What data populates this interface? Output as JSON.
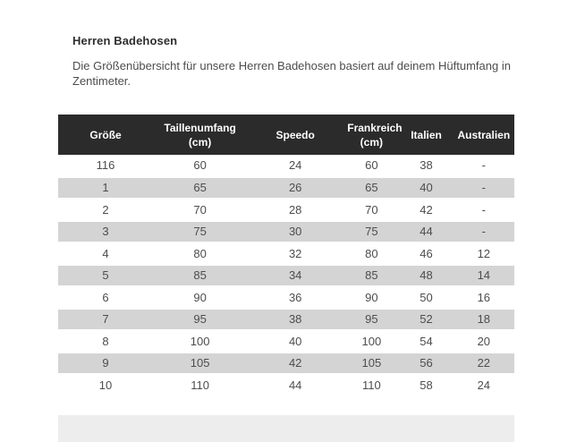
{
  "page": {
    "title": "Herren Badehosen",
    "description": "Die Größenübersicht für unsere Herren Badehosen basiert auf deinem Hüftumfang in Zentimeter."
  },
  "size_chart": {
    "columns": [
      "Größe",
      "Taillenumfang (cm)",
      "Speedo",
      "Frankreich (cm)",
      "Italien",
      "Australien"
    ],
    "rows": [
      [
        "116",
        "60",
        "24",
        "60",
        "38",
        "-"
      ],
      [
        "1",
        "65",
        "26",
        "65",
        "40",
        "-"
      ],
      [
        "2",
        "70",
        "28",
        "70",
        "42",
        "-"
      ],
      [
        "3",
        "75",
        "30",
        "75",
        "44",
        "-"
      ],
      [
        "4",
        "80",
        "32",
        "80",
        "46",
        "12"
      ],
      [
        "5",
        "85",
        "34",
        "85",
        "48",
        "14"
      ],
      [
        "6",
        "90",
        "36",
        "90",
        "50",
        "16"
      ],
      [
        "7",
        "95",
        "38",
        "95",
        "52",
        "18"
      ],
      [
        "8",
        "100",
        "40",
        "100",
        "54",
        "20"
      ],
      [
        "9",
        "105",
        "42",
        "105",
        "56",
        "22"
      ],
      [
        "10",
        "110",
        "44",
        "110",
        "58",
        "24"
      ]
    ],
    "colors": {
      "header_bg": "#2b2b2b",
      "header_text": "#ffffff",
      "stripe_row_bg": "#d4d4d4",
      "partial_row_bg": "#ededed",
      "cell_text": "#4d4d4d"
    }
  }
}
